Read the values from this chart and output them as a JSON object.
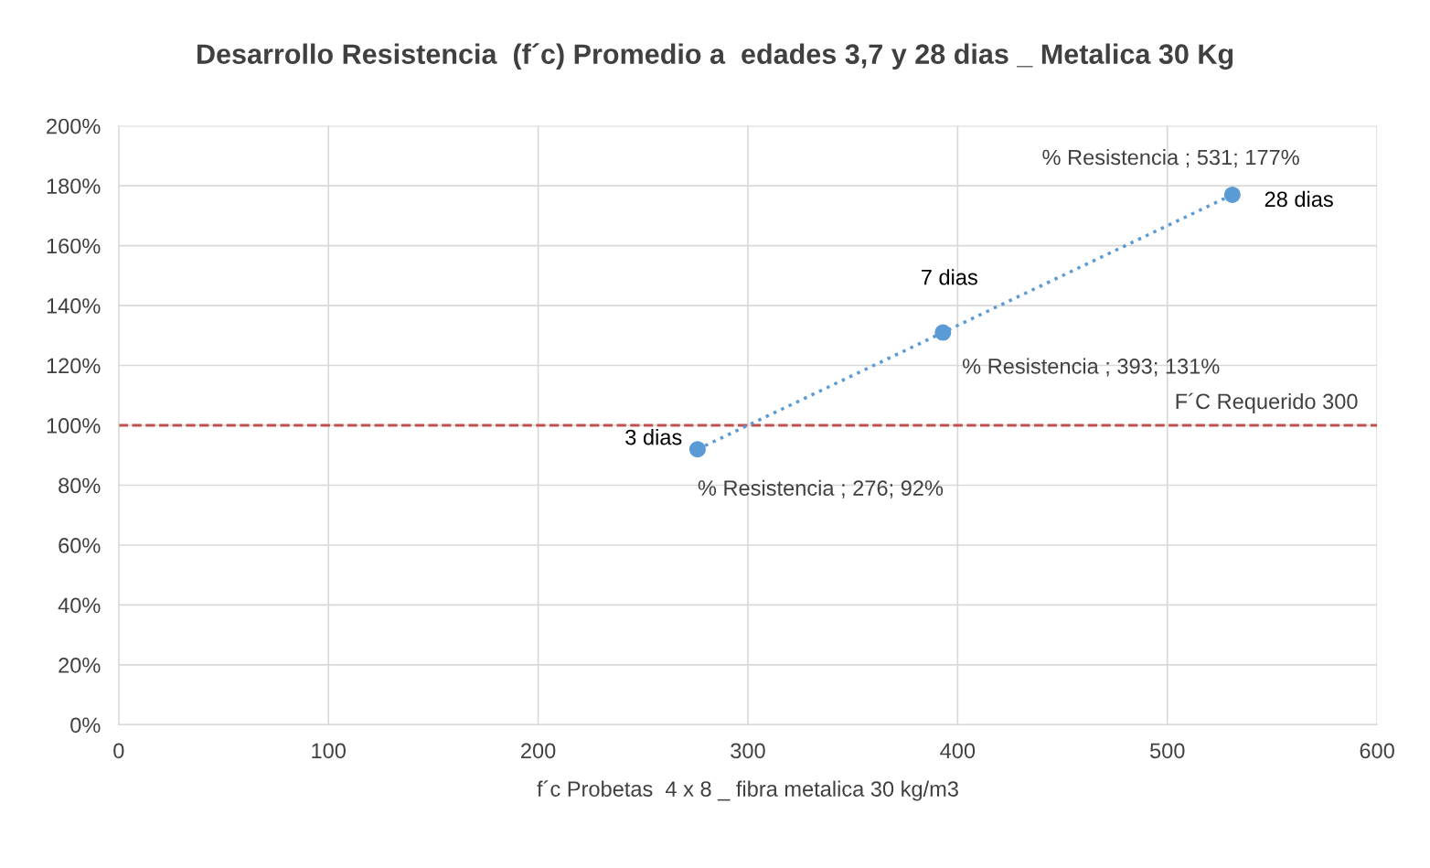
{
  "chart_data": {
    "type": "line",
    "title": "Desarrollo Resistencia  (f´c) Promedio a  edades 3,7 y 28 dias _ Metalica 30 Kg",
    "xlabel": "f´c Probetas  4 x 8 _ fibra metalica 30 kg/m3",
    "x": [
      276,
      393,
      531
    ],
    "series": [
      {
        "color": "#5b9bd5",
        "values": [
          92,
          131,
          177
        ],
        "value_labels": [
          "% Resistencia ; 276; 92%",
          "% Resistencia ; 393; 131%",
          "% Resistencia ; 531; 177%"
        ]
      }
    ],
    "annotations": [
      {
        "text": "3 dias",
        "x": 276,
        "y": 92
      },
      {
        "text": "7 dias",
        "x": 393,
        "y": 131
      },
      {
        "text": "28 dias",
        "x": 531,
        "y": 177
      }
    ],
    "ref_lines": [
      {
        "axis": "y",
        "value": 100,
        "label": "F´C Requerido 300",
        "color": "#c0504d",
        "line_style": "dashed"
      }
    ],
    "xlim": [
      0,
      600
    ],
    "xticks": [
      0,
      100,
      200,
      300,
      400,
      500,
      600
    ],
    "ylim": [
      0,
      200
    ],
    "yticks": [
      {
        "value": 0,
        "label": "0%"
      },
      {
        "value": 20,
        "label": "20%"
      },
      {
        "value": 40,
        "label": "40%"
      },
      {
        "value": 60,
        "label": "60%"
      },
      {
        "value": 80,
        "label": "80%"
      },
      {
        "value": 100,
        "label": "100%"
      },
      {
        "value": 120,
        "label": "120%"
      },
      {
        "value": 140,
        "label": "140%"
      },
      {
        "value": 160,
        "label": "160%"
      },
      {
        "value": 180,
        "label": "180%"
      },
      {
        "value": 200,
        "label": "200%"
      }
    ],
    "grid": true,
    "marker": "circle",
    "line_style": "dotted"
  }
}
